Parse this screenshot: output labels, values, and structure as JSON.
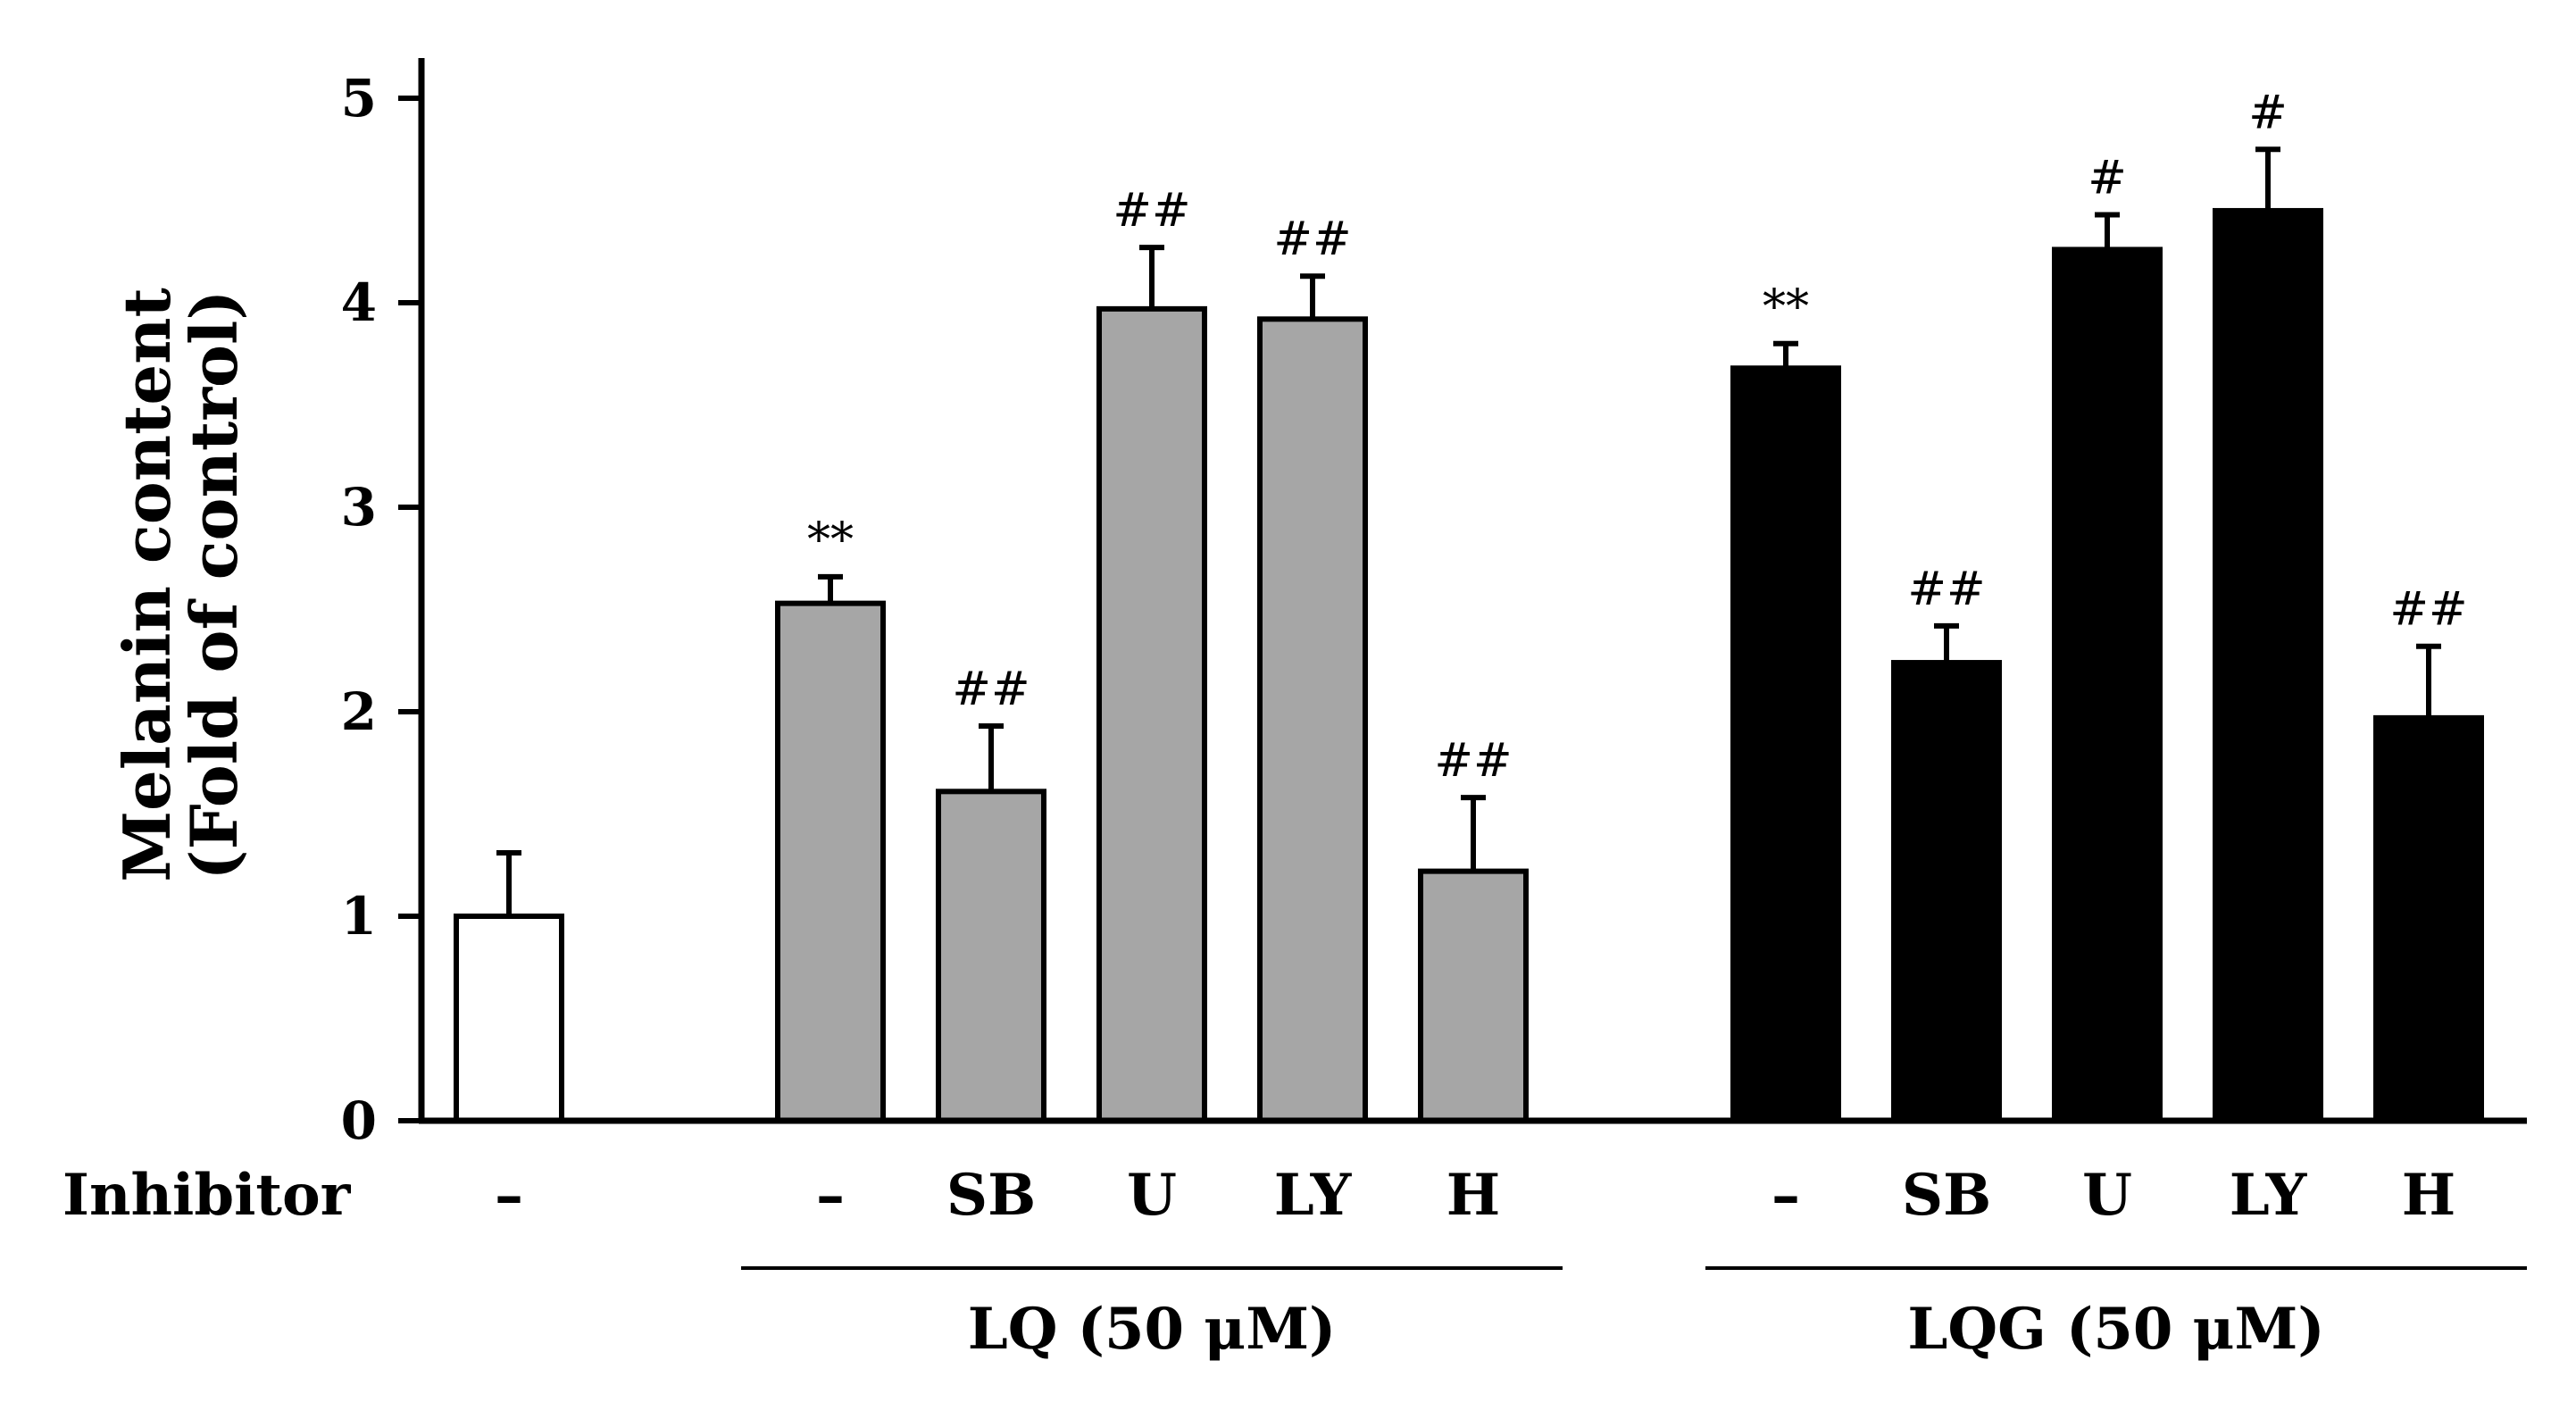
{
  "chart_data": {
    "type": "bar",
    "title": "",
    "ylabel": "Melanin content (Fold of control)",
    "ylabel_lines": [
      "Melanin content",
      "(Fold of control)"
    ],
    "ylim": [
      0,
      5
    ],
    "yticks": [
      0,
      1,
      2,
      3,
      4,
      5
    ],
    "row_label": "Inhibitor",
    "groups": [
      {
        "label": "",
        "color": "#ffffff"
      },
      {
        "label": "LQ (50 μM)",
        "color": "#a6a6a6"
      },
      {
        "label": "LQG (50 μM)",
        "color": "#000000"
      }
    ],
    "bars": [
      {
        "inhibitor": "–",
        "group": 0,
        "value": 1.0,
        "error": 0.31,
        "annotation": ""
      },
      {
        "inhibitor": "–",
        "group": 1,
        "value": 2.53,
        "error": 0.13,
        "annotation": "**"
      },
      {
        "inhibitor": "SB",
        "group": 1,
        "value": 1.61,
        "error": 0.32,
        "annotation": "##"
      },
      {
        "inhibitor": "U",
        "group": 1,
        "value": 3.97,
        "error": 0.3,
        "annotation": "##"
      },
      {
        "inhibitor": "LY",
        "group": 1,
        "value": 3.92,
        "error": 0.21,
        "annotation": "##"
      },
      {
        "inhibitor": "H",
        "group": 1,
        "value": 1.22,
        "error": 0.36,
        "annotation": "##"
      },
      {
        "inhibitor": "–",
        "group": 2,
        "value": 3.68,
        "error": 0.12,
        "annotation": "**"
      },
      {
        "inhibitor": "SB",
        "group": 2,
        "value": 2.24,
        "error": 0.18,
        "annotation": "##"
      },
      {
        "inhibitor": "U",
        "group": 2,
        "value": 4.26,
        "error": 0.17,
        "annotation": "#"
      },
      {
        "inhibitor": "LY",
        "group": 2,
        "value": 4.45,
        "error": 0.3,
        "annotation": "#"
      },
      {
        "inhibitor": "H",
        "group": 2,
        "value": 1.97,
        "error": 0.35,
        "annotation": "##"
      }
    ]
  }
}
